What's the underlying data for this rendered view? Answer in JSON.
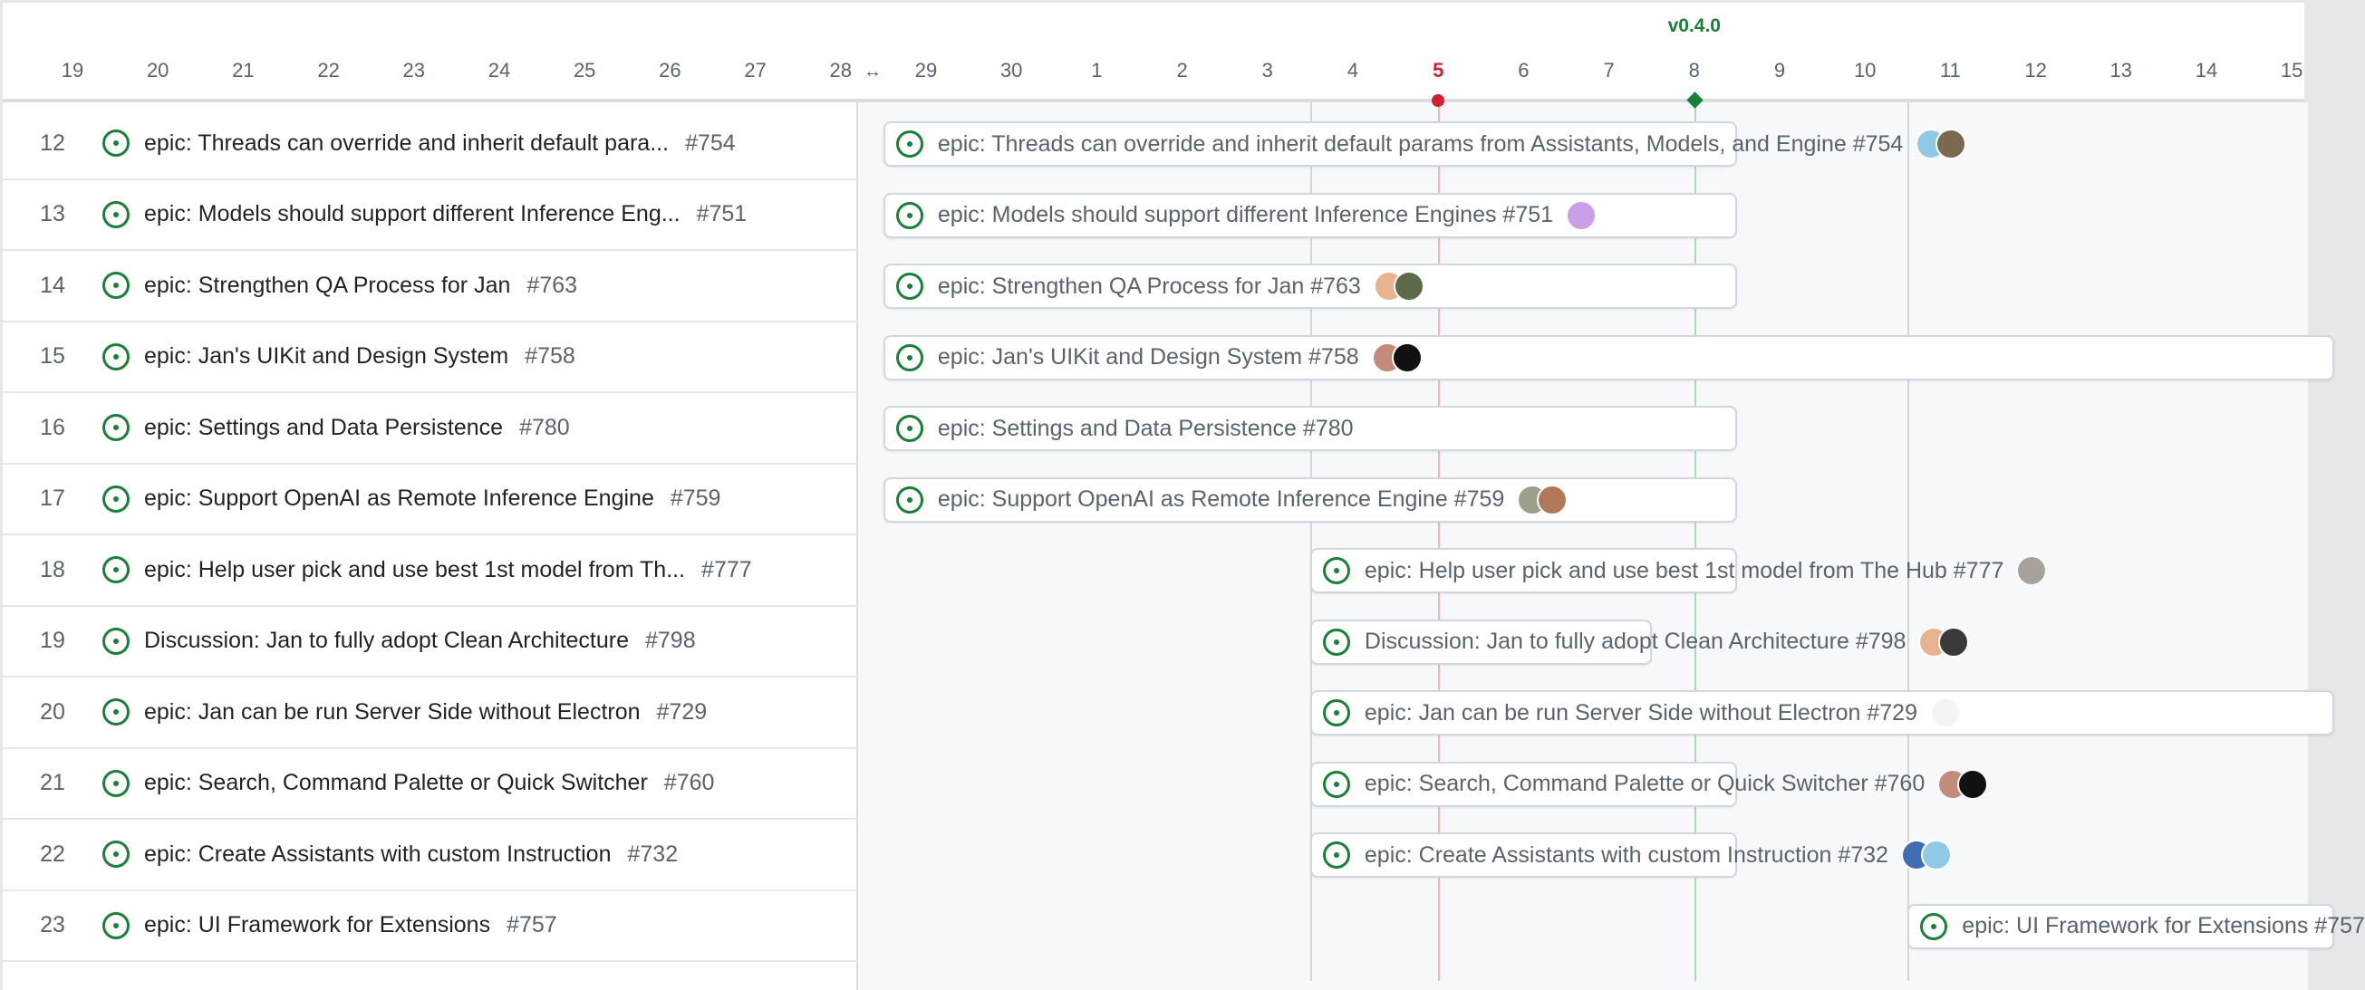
{
  "timeline": {
    "days": [
      "19",
      "20",
      "21",
      "22",
      "23",
      "24",
      "25",
      "26",
      "27",
      "28",
      "29",
      "30",
      "1",
      "2",
      "3",
      "4",
      "5",
      "6",
      "7",
      "8",
      "9",
      "10",
      "11",
      "12",
      "13",
      "14",
      "15"
    ],
    "today": "5",
    "milestone": {
      "label": "v0.4.0",
      "day": "8"
    },
    "column_lines": [
      "4",
      "11"
    ],
    "colors": {
      "today": "#cf222e",
      "milestone": "#1a7f37",
      "open_icon": "#1a7f37"
    }
  },
  "rows": [
    {
      "num": "12",
      "title": "epic: Threads can override and inherit default params from Assistants, Models, and Engine",
      "short": "epic: Threads can override and inherit default para...",
      "ref": "#754",
      "start": "29",
      "end": "8",
      "avatars": [
        "#8ec9e6",
        "#7a6a50"
      ]
    },
    {
      "num": "13",
      "title": "epic: Models should support different Inference Engines",
      "short": "epic: Models should support different Inference Eng...",
      "ref": "#751",
      "start": "29",
      "end": "8",
      "avatars": [
        "#c9a0e8"
      ]
    },
    {
      "num": "14",
      "title": "epic: Strengthen QA Process for Jan",
      "short": "epic: Strengthen QA Process for Jan",
      "ref": "#763",
      "start": "29",
      "end": "8",
      "avatars": [
        "#e8b48f",
        "#5b6b4a"
      ]
    },
    {
      "num": "15",
      "title": "epic: Jan's UIKit and Design System",
      "short": "epic: Jan's UIKit and Design System",
      "ref": "#758",
      "start": "29",
      "end": "15",
      "avatars": [
        "#c48a7c",
        "#111111"
      ]
    },
    {
      "num": "16",
      "title": "epic: Settings and Data Persistence",
      "short": "epic: Settings and Data Persistence",
      "ref": "#780",
      "start": "29",
      "end": "8",
      "avatars": []
    },
    {
      "num": "17",
      "title": "epic: Support OpenAI as Remote Inference Engine",
      "short": "epic: Support OpenAI as Remote Inference Engine",
      "ref": "#759",
      "start": "29",
      "end": "8",
      "avatars": [
        "#9aa08a",
        "#b07a5a"
      ]
    },
    {
      "num": "18",
      "title": "epic: Help user pick and use best 1st model from The Hub",
      "short": "epic: Help user pick and use best 1st model from Th...",
      "ref": "#777",
      "start": "4",
      "end": "8",
      "avatars": [
        "#a7a39a"
      ]
    },
    {
      "num": "19",
      "title": "Discussion: Jan to fully adopt Clean Architecture",
      "short": "Discussion: Jan to fully adopt Clean Architecture",
      "ref": "#798",
      "start": "4",
      "end": "7",
      "avatars": [
        "#e8b48f",
        "#3a3a3a"
      ]
    },
    {
      "num": "20",
      "title": "epic: Jan can be run Server Side without Electron",
      "short": "epic: Jan can be run Server Side without Electron",
      "ref": "#729",
      "start": "4",
      "end": "15",
      "avatars": [
        "#f4f4f4"
      ]
    },
    {
      "num": "21",
      "title": "epic: Search, Command Palette or Quick Switcher",
      "short": "epic: Search, Command Palette or Quick Switcher",
      "ref": "#760",
      "start": "4",
      "end": "8",
      "avatars": [
        "#c48a7c",
        "#111111"
      ]
    },
    {
      "num": "22",
      "title": "epic: Create Assistants with custom Instruction",
      "short": "epic: Create Assistants with custom Instruction",
      "ref": "#732",
      "start": "4",
      "end": "8",
      "avatars": [
        "#3f6fb0",
        "#8ec9e6"
      ]
    },
    {
      "num": "23",
      "title": "epic: UI Framework for Extensions",
      "short": "epic: UI Framework for Extensions",
      "ref": "#757",
      "start": "11",
      "end": "15",
      "avatars": []
    }
  ]
}
